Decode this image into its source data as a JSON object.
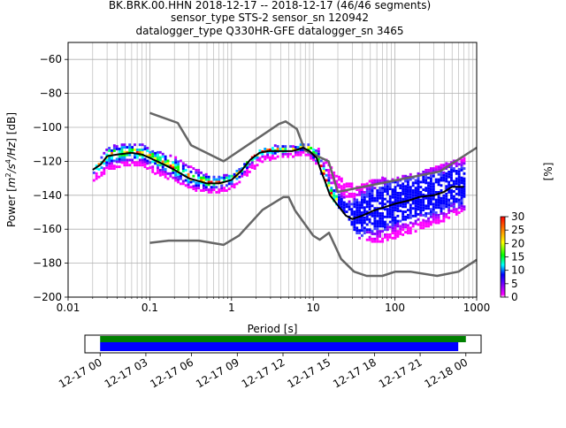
{
  "title": {
    "line1": "BK.BRK.00.HHN   2018-12-17 -- 2018-12-17  (46/46 segments)",
    "line2": "sensor_type STS-2 sensor_sn 120942",
    "line3": "datalogger_type Q330HR-GFE datalogger_sn 3465"
  },
  "chart_data": {
    "type": "heatmap",
    "subtype": "probabilistic_power_spectral_density",
    "xlabel": "Period [s]",
    "ylabel": "Power [m²/s⁴/Hz] [dB]",
    "x_scale": "log",
    "xlim": [
      0.01,
      1000
    ],
    "ylim": [
      -200,
      -50
    ],
    "x_tick_labels": [
      "0.01",
      "0.1",
      "1",
      "10",
      "100",
      "1000"
    ],
    "y_ticks": [
      -60,
      -80,
      -100,
      -120,
      -140,
      -160,
      -180,
      -200
    ],
    "grid": true,
    "colorbar": {
      "label": "[%]",
      "ticks": [
        0,
        5,
        10,
        15,
        20,
        25,
        30
      ],
      "range": [
        0,
        30
      ],
      "colormap": "pqlx"
    },
    "series": [
      {
        "role": "high_noise_model",
        "color": "#666666",
        "x": [
          0.1,
          0.22,
          0.32,
          0.8,
          3.8,
          4.6,
          6.3,
          7.9,
          15.4,
          20,
          354.8,
          1000
        ],
        "y": [
          -91.5,
          -97.4,
          -110.5,
          -120,
          -98,
          -96.5,
          -101,
          -113.5,
          -120,
          -138,
          -126,
          -112
        ]
      },
      {
        "role": "low_noise_model",
        "color": "#666666",
        "x": [
          0.1,
          0.17,
          0.4,
          0.8,
          1.24,
          2.4,
          4.3,
          5.0,
          6.0,
          10.0,
          12.0,
          15.6,
          21.9,
          31.6,
          45,
          70,
          101,
          154,
          328,
          600,
          1000
        ],
        "y": [
          -168,
          -166.7,
          -166.7,
          -169.2,
          -163.7,
          -148.6,
          -141.1,
          -141.1,
          -149.0,
          -163.8,
          -166.2,
          -162.1,
          -177.5,
          -185,
          -187.5,
          -187.5,
          -185,
          -185,
          -187.5,
          -185,
          -178
        ]
      },
      {
        "role": "mode",
        "color": "#000000",
        "x": [
          0.02,
          0.025,
          0.03,
          0.04,
          0.06,
          0.08,
          0.1,
          0.15,
          0.2,
          0.3,
          0.5,
          0.7,
          1.0,
          1.3,
          1.7,
          2.2,
          2.8,
          3.5,
          4.5,
          5.5,
          6.5,
          7.5,
          9,
          11,
          12.5,
          14,
          16,
          20,
          25,
          30,
          40,
          55,
          75,
          100,
          150,
          200,
          300,
          400,
          500,
          700
        ],
        "y": [
          -125,
          -122,
          -117,
          -116,
          -115,
          -116,
          -118,
          -122,
          -125,
          -130,
          -133,
          -133,
          -131,
          -126,
          -119,
          -115,
          -114,
          -114,
          -114,
          -114,
          -113,
          -112,
          -114,
          -118,
          -126,
          -132,
          -140,
          -146,
          -152,
          -154,
          -152,
          -149,
          -147,
          -145,
          -143,
          -141,
          -140,
          -138,
          -135,
          -135
        ]
      }
    ],
    "density_band": {
      "x": [
        0.02,
        0.03,
        0.05,
        0.08,
        0.12,
        0.2,
        0.35,
        0.6,
        1.0,
        1.5,
        2.2,
        3.5,
        5.5,
        8,
        11,
        14,
        18,
        25,
        35,
        60,
        100,
        200,
        400,
        700
      ],
      "low": [
        -132,
        -125,
        -122,
        -123,
        -128,
        -132,
        -137,
        -139,
        -136,
        -128,
        -121,
        -118,
        -117,
        -116,
        -122,
        -135,
        -145,
        -152,
        -165,
        -168,
        -165,
        -160,
        -155,
        -148
      ],
      "high": [
        -125,
        -112,
        -110,
        -111,
        -115,
        -118,
        -125,
        -130,
        -128,
        -121,
        -114,
        -111,
        -112,
        -110,
        -112,
        -120,
        -128,
        -133,
        -135,
        -130,
        -130,
        -127,
        -122,
        -118
      ]
    }
  },
  "time_panel": {
    "tick_labels": [
      "12-17 00",
      "12-17 03",
      "12-17 06",
      "12-17 09",
      "12-17 12",
      "12-17 15",
      "12-17 18",
      "12-17 21",
      "12-18 00"
    ],
    "xlim_hours": [
      -1,
      25
    ],
    "green_bar_hours": [
      0,
      24
    ],
    "blue_bar_hours": [
      0,
      23.5
    ],
    "green_color": "#008000",
    "blue_color": "#0000ff"
  }
}
